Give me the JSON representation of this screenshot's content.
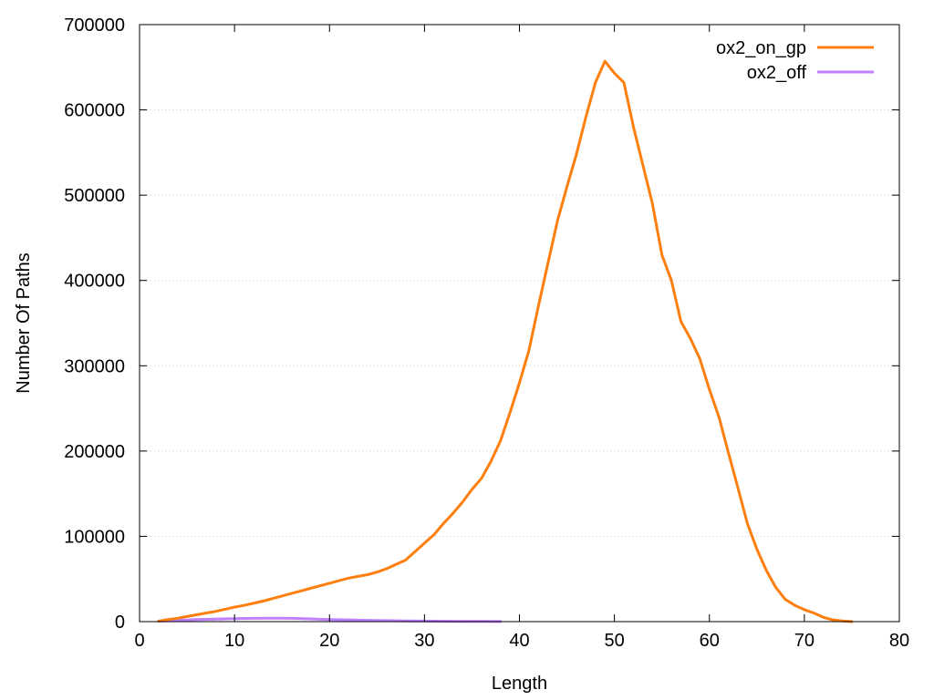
{
  "chart_data": {
    "type": "line",
    "title": "",
    "xlabel": "Length",
    "ylabel": "Number Of Paths",
    "xlim": [
      0,
      80
    ],
    "ylim": [
      0,
      700000
    ],
    "x_ticks": [
      0,
      10,
      20,
      30,
      40,
      50,
      60,
      70,
      80
    ],
    "y_ticks": [
      0,
      100000,
      200000,
      300000,
      400000,
      500000,
      600000,
      700000
    ],
    "grid": "horizontal dotted",
    "legend_position": "top-right",
    "series": [
      {
        "name": "ox2_on_gp",
        "color": "#ff7f0e",
        "x": [
          2,
          3,
          4,
          5,
          6,
          7,
          8,
          9,
          10,
          11,
          12,
          13,
          14,
          15,
          16,
          17,
          18,
          19,
          20,
          21,
          22,
          23,
          24,
          25,
          26,
          27,
          28,
          29,
          30,
          31,
          32,
          33,
          34,
          35,
          36,
          37,
          38,
          39,
          40,
          41,
          42,
          43,
          44,
          45,
          46,
          47,
          48,
          49,
          50,
          51,
          52,
          53,
          54,
          55,
          56,
          57,
          58,
          59,
          60,
          61,
          62,
          63,
          64,
          65,
          66,
          67,
          68,
          69,
          70,
          71,
          72,
          73,
          74,
          75
        ],
        "y": [
          500,
          2500,
          4000,
          6000,
          8000,
          10000,
          12000,
          14500,
          17000,
          19000,
          21500,
          24000,
          27000,
          30000,
          33000,
          36000,
          39000,
          42000,
          45000,
          48000,
          51000,
          53000,
          55000,
          58000,
          62000,
          67000,
          72000,
          82000,
          92000,
          102000,
          115000,
          127000,
          140000,
          155000,
          168000,
          188000,
          212000,
          245000,
          280000,
          318000,
          370000,
          420000,
          470000,
          510000,
          548000,
          592000,
          632000,
          657000,
          643000,
          632000,
          580000,
          535000,
          490000,
          430000,
          400000,
          352000,
          332000,
          308000,
          272000,
          240000,
          198000,
          157000,
          115000,
          85000,
          60000,
          40000,
          26000,
          19000,
          14000,
          10000,
          5000,
          2000,
          800,
          0
        ]
      },
      {
        "name": "ox2_off",
        "color": "#c080ff",
        "x": [
          2,
          4,
          6,
          8,
          10,
          12,
          14,
          16,
          18,
          20,
          22,
          24,
          26,
          28,
          30,
          32,
          34,
          36,
          38
        ],
        "y": [
          500,
          1500,
          2500,
          3000,
          3500,
          3800,
          4000,
          3800,
          3200,
          2500,
          2000,
          1500,
          1200,
          900,
          600,
          400,
          300,
          200,
          150
        ]
      }
    ]
  }
}
